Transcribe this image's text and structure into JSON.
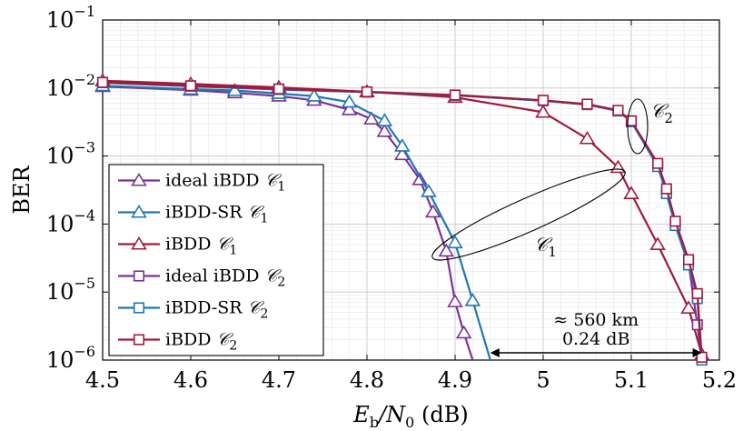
{
  "chart_data": {
    "type": "line",
    "xlabel_main": "E",
    "xlabel_sub": "b",
    "xlabel_sep": "/N",
    "xlabel_sub2": "0",
    "xlabel_unit": " (dB)",
    "ylabel": "BER",
    "xlim": [
      4.5,
      5.2
    ],
    "ylim": [
      1e-06,
      0.1
    ],
    "yscale": "log",
    "grid": true,
    "legend_position": "bottom-left",
    "x_ticks": [
      "4.5",
      "4.6",
      "4.7",
      "4.8",
      "4.9",
      "5",
      "5.1",
      "5.2"
    ],
    "y_ticks": [
      {
        "base": "10",
        "exp": "−1"
      },
      {
        "base": "10",
        "exp": "−2"
      },
      {
        "base": "10",
        "exp": "−3"
      },
      {
        "base": "10",
        "exp": "−4"
      },
      {
        "base": "10",
        "exp": "−5"
      },
      {
        "base": "10",
        "exp": "−6"
      }
    ],
    "series": [
      {
        "name": "ideal iBDD 𝒞₁",
        "label_text": "ideal iBDD ",
        "label_code": "𝒞",
        "label_sub": "1",
        "color": "#7B3294",
        "marker": "triangle",
        "x": [
          4.5,
          4.6,
          4.65,
          4.7,
          4.74,
          4.78,
          4.805,
          4.82,
          4.84,
          4.86,
          4.875,
          4.89,
          4.9,
          4.91,
          4.92
        ],
        "y": [
          0.0105,
          0.0093,
          0.0085,
          0.0076,
          0.0066,
          0.0048,
          0.0035,
          0.0023,
          0.00105,
          0.00045,
          0.00015,
          4e-05,
          7.2e-06,
          2.5e-06,
          1e-06
        ]
      },
      {
        "name": "iBDD-SR 𝒞₁",
        "label_text": "iBDD-SR ",
        "label_code": "𝒞",
        "label_sub": "1",
        "color": "#1F77B4",
        "marker": "triangle",
        "x": [
          4.5,
          4.6,
          4.65,
          4.7,
          4.74,
          4.78,
          4.82,
          4.84,
          4.87,
          4.9,
          4.92,
          4.94
        ],
        "y": [
          0.0108,
          0.0096,
          0.0092,
          0.0083,
          0.0076,
          0.0062,
          0.0033,
          0.0014,
          0.0003,
          5.3e-05,
          7.5e-06,
          1e-06
        ]
      },
      {
        "name": "iBDD 𝒞₁",
        "label_text": "iBDD ",
        "label_code": "𝒞",
        "label_sub": "1",
        "color": "#A01A3C",
        "marker": "triangle",
        "x": [
          4.5,
          4.6,
          4.7,
          4.8,
          4.9,
          5.0,
          5.05,
          5.085,
          5.1,
          5.13,
          5.165,
          5.18
        ],
        "y": [
          0.0128,
          0.0115,
          0.0102,
          0.0088,
          0.0073,
          0.0044,
          0.0018,
          0.00068,
          0.00028,
          5e-05,
          5.8e-06,
          1.2e-06
        ]
      },
      {
        "name": "ideal iBDD 𝒞₂",
        "label_text": "ideal iBDD ",
        "label_code": "𝒞",
        "label_sub": "2",
        "color": "#7B3294",
        "marker": "square",
        "x": [
          4.5,
          4.6,
          4.7,
          4.8,
          4.9,
          5.0,
          5.05,
          5.085,
          5.1,
          5.13,
          5.14,
          5.15,
          5.165,
          5.175,
          5.18
        ],
        "y": [
          0.012,
          0.0107,
          0.0096,
          0.0087,
          0.0078,
          0.0065,
          0.0057,
          0.0046,
          0.0032,
          0.00075,
          0.00029,
          0.0001,
          2.7e-05,
          3.3e-06,
          1e-06
        ]
      },
      {
        "name": "iBDD-SR 𝒞₂",
        "label_text": "iBDD-SR ",
        "label_code": "𝒞",
        "label_sub": "2",
        "color": "#1F77B4",
        "marker": "square",
        "x": [
          4.5,
          4.6,
          4.7,
          4.8,
          4.9,
          5.0,
          5.05,
          5.085,
          5.1,
          5.13,
          5.14,
          5.15,
          5.165,
          5.175,
          5.18
        ],
        "y": [
          0.012,
          0.0106,
          0.0095,
          0.0087,
          0.0078,
          0.0065,
          0.0057,
          0.0046,
          0.0032,
          0.0007,
          0.00028,
          9.5e-05,
          2.5e-05,
          8e-06,
          1e-06
        ]
      },
      {
        "name": "iBDD 𝒞₂",
        "label_text": "iBDD ",
        "label_code": "𝒞",
        "label_sub": "2",
        "color": "#A01A3C",
        "marker": "square",
        "x": [
          4.5,
          4.6,
          4.7,
          4.8,
          4.9,
          5.0,
          5.05,
          5.085,
          5.1,
          5.13,
          5.14,
          5.15,
          5.165,
          5.175,
          5.18
        ],
        "y": [
          0.0121,
          0.0108,
          0.0097,
          0.0088,
          0.0079,
          0.0066,
          0.0058,
          0.0047,
          0.0033,
          0.00078,
          0.00033,
          0.00011,
          3e-05,
          9.5e-06,
          1.1e-06
        ]
      }
    ],
    "annotations": {
      "c1_label_code": "𝒞",
      "c1_label_sub": "1",
      "c2_label_code": "𝒞",
      "c2_label_sub": "2",
      "distance_text": "≈ 560 km",
      "gap_text": "0.24 dB",
      "gap_x": [
        4.94,
        5.18
      ],
      "gap_y": 1.2e-06
    }
  }
}
